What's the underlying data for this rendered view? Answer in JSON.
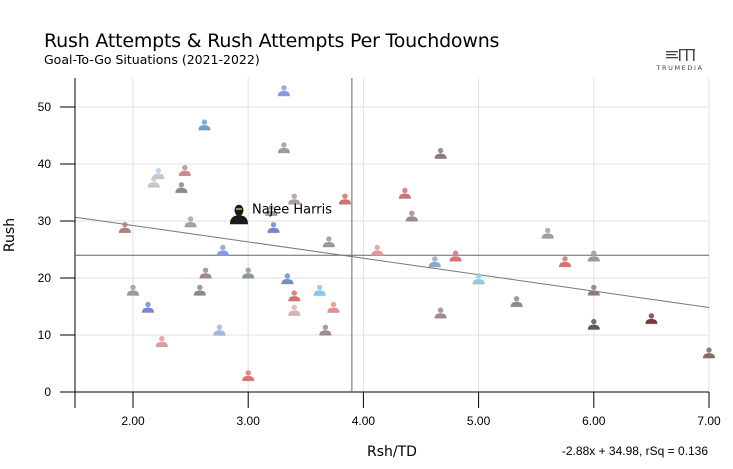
{
  "header": {
    "title": "Rush Attempts & Rush Attempts Per Touchdowns",
    "subtitle": "Goal-To-Go Situations (2021-2022)",
    "logo_text": "TRUMEDIA"
  },
  "chart_data": {
    "type": "scatter",
    "title": "Rush Attempts & Rush Attempts Per Touchdowns",
    "subtitle": "Goal-To-Go Situations (2021-2022)",
    "xlabel": "Rsh/TD",
    "ylabel": "Rush",
    "xlim": [
      1.5,
      7.0
    ],
    "ylim": [
      0,
      55
    ],
    "x_ticks": [
      "2.00",
      "3.00",
      "4.00",
      "5.00",
      "6.00",
      "7.00"
    ],
    "x_tick_values": [
      2,
      3,
      4,
      5,
      6,
      7
    ],
    "y_ticks": [
      "0",
      "10",
      "20",
      "30",
      "40",
      "50"
    ],
    "y_tick_values": [
      0,
      10,
      20,
      30,
      40,
      50
    ],
    "grid": true,
    "reference_lines": {
      "x_mean": 3.9,
      "y_mean": 24
    },
    "trendline": {
      "slope": -2.88,
      "intercept": 34.98,
      "label": "-2.88x + 34.98, rSq = 0.136"
    },
    "highlight": {
      "label": "Najee Harris",
      "x": 2.92,
      "y": 31,
      "color": "#1a1a1a"
    },
    "points": [
      {
        "x": 3.31,
        "y": 53,
        "color": "#8a9ad8"
      },
      {
        "x": 2.62,
        "y": 47,
        "color": "#6fa0c8"
      },
      {
        "x": 3.31,
        "y": 43,
        "color": "#9a9a9a"
      },
      {
        "x": 4.67,
        "y": 42,
        "color": "#8a7a7a"
      },
      {
        "x": 2.22,
        "y": 38.5,
        "color": "#b8cbe3"
      },
      {
        "x": 2.18,
        "y": 37,
        "color": "#c8c8c8"
      },
      {
        "x": 2.45,
        "y": 39,
        "color": "#c98a8a"
      },
      {
        "x": 2.42,
        "y": 36,
        "color": "#8a8a8a"
      },
      {
        "x": 4.36,
        "y": 35,
        "color": "#d47070"
      },
      {
        "x": 3.4,
        "y": 34,
        "color": "#b0a0a0"
      },
      {
        "x": 3.84,
        "y": 34,
        "color": "#d47070"
      },
      {
        "x": 4.42,
        "y": 31,
        "color": "#a08a8a"
      },
      {
        "x": 3.2,
        "y": 32,
        "color": "#9a9a9a"
      },
      {
        "x": 2.5,
        "y": 30,
        "color": "#b0a090"
      },
      {
        "x": 1.93,
        "y": 29,
        "color": "#b08080"
      },
      {
        "x": 3.22,
        "y": 29,
        "color": "#6f8ac8"
      },
      {
        "x": 5.6,
        "y": 28,
        "color": "#a0a0a0"
      },
      {
        "x": 3.7,
        "y": 26.5,
        "color": "#9a9a9a"
      },
      {
        "x": 2.78,
        "y": 25,
        "color": "#8a9ad8"
      },
      {
        "x": 4.12,
        "y": 25,
        "color": "#e09a9a"
      },
      {
        "x": 4.62,
        "y": 23,
        "color": "#88aacc"
      },
      {
        "x": 4.8,
        "y": 24,
        "color": "#e07070"
      },
      {
        "x": 5.75,
        "y": 23,
        "color": "#d47070"
      },
      {
        "x": 6.0,
        "y": 24,
        "color": "#9a9a9a"
      },
      {
        "x": 2.63,
        "y": 21,
        "color": "#a08a8a"
      },
      {
        "x": 3.0,
        "y": 21,
        "color": "#8a9a8a"
      },
      {
        "x": 3.34,
        "y": 20,
        "color": "#6f8ad8"
      },
      {
        "x": 5.0,
        "y": 20,
        "color": "#8ad0e0"
      },
      {
        "x": 2.0,
        "y": 18,
        "color": "#9a9a9a"
      },
      {
        "x": 2.58,
        "y": 18,
        "color": "#8a8a8a"
      },
      {
        "x": 3.4,
        "y": 17,
        "color": "#d47070"
      },
      {
        "x": 3.62,
        "y": 18,
        "color": "#88c8e8"
      },
      {
        "x": 6.0,
        "y": 18,
        "color": "#8a7a7a"
      },
      {
        "x": 2.13,
        "y": 15,
        "color": "#6f8ad8"
      },
      {
        "x": 3.4,
        "y": 14.5,
        "color": "#e0b0b0"
      },
      {
        "x": 3.74,
        "y": 15,
        "color": "#e09090"
      },
      {
        "x": 4.67,
        "y": 14,
        "color": "#a08a8a"
      },
      {
        "x": 5.33,
        "y": 16,
        "color": "#8a8a8a"
      },
      {
        "x": 2.75,
        "y": 11,
        "color": "#a0b8d8"
      },
      {
        "x": 3.67,
        "y": 11,
        "color": "#a08a8a"
      },
      {
        "x": 6.0,
        "y": 12,
        "color": "#5a5a5a"
      },
      {
        "x": 6.5,
        "y": 13,
        "color": "#7a3a3a"
      },
      {
        "x": 2.25,
        "y": 9,
        "color": "#e09a9a"
      },
      {
        "x": 3.0,
        "y": 3,
        "color": "#e07070"
      },
      {
        "x": 7.0,
        "y": 7,
        "color": "#8a6a5a"
      }
    ]
  }
}
